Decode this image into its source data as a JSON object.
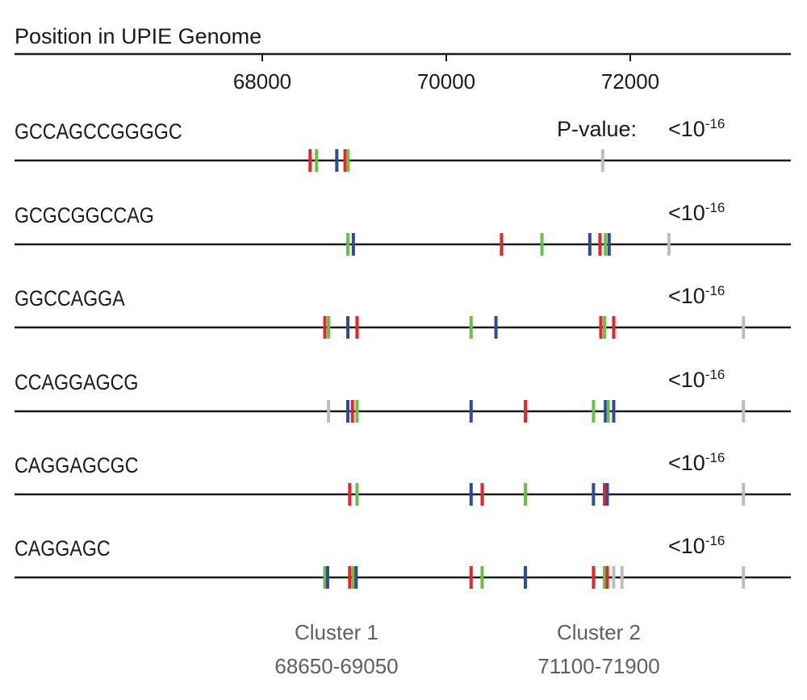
{
  "axis": {
    "title": "Position in UPIE Genome",
    "range": [
      65400,
      73900
    ],
    "ticks": [
      68000,
      70000,
      72000
    ],
    "tick_labels": [
      "68000",
      "70000",
      "72000"
    ]
  },
  "pvalue_label": "P-value:",
  "colors": {
    "red": "#e8242a",
    "green": "#6abf45",
    "blue": "#2e4a9e",
    "gray": "#bdbdbd",
    "line": "#1a1a1a",
    "cluster_text": "#5f5f5f"
  },
  "rows": [
    {
      "motif": "GCCAGCCGGGGC",
      "pvalue_prefix": "<10",
      "pvalue_exp": "-16",
      "marks": [
        [
          "red",
          68520
        ],
        [
          "green",
          68590
        ],
        [
          "blue",
          68810
        ],
        [
          "red",
          68900
        ],
        [
          "green",
          68930
        ],
        [
          "gray",
          71700
        ]
      ]
    },
    {
      "motif": "GCGCGGCCAG",
      "pvalue_prefix": "<10",
      "pvalue_exp": "-16",
      "marks": [
        [
          "green",
          68930
        ],
        [
          "blue",
          68990
        ],
        [
          "red",
          70600
        ],
        [
          "green",
          71040
        ],
        [
          "blue",
          71560
        ],
        [
          "red",
          71670
        ],
        [
          "green",
          71730
        ],
        [
          "blue",
          71770
        ],
        [
          "gray",
          72420
        ]
      ]
    },
    {
      "motif": "GGCCAGGA",
      "pvalue_prefix": "<10",
      "pvalue_exp": "-16",
      "marks": [
        [
          "red",
          68680
        ],
        [
          "green",
          68720
        ],
        [
          "blue",
          68930
        ],
        [
          "red",
          69030
        ],
        [
          "green",
          70270
        ],
        [
          "blue",
          70540
        ],
        [
          "red",
          71680
        ],
        [
          "green",
          71720
        ],
        [
          "red",
          71820
        ],
        [
          "gray",
          73230
        ]
      ]
    },
    {
      "motif": "CCAGGAGCG",
      "pvalue_prefix": "<10",
      "pvalue_exp": "-16",
      "marks": [
        [
          "gray",
          68720
        ],
        [
          "blue",
          68930
        ],
        [
          "red",
          68980
        ],
        [
          "green",
          69030
        ],
        [
          "blue",
          70270
        ],
        [
          "red",
          70860
        ],
        [
          "green",
          71600
        ],
        [
          "blue",
          71730
        ],
        [
          "green",
          71760
        ],
        [
          "blue",
          71820
        ],
        [
          "gray",
          73230
        ]
      ]
    },
    {
      "motif": "CAGGAGCGC",
      "pvalue_prefix": "<10",
      "pvalue_exp": "-16",
      "marks": [
        [
          "red",
          68950
        ],
        [
          "green",
          69030
        ],
        [
          "blue",
          70270
        ],
        [
          "red",
          70390
        ],
        [
          "green",
          70860
        ],
        [
          "blue",
          71600
        ],
        [
          "red",
          71720
        ],
        [
          "blue",
          71750
        ],
        [
          "gray",
          73230
        ]
      ]
    },
    {
      "motif": "CAGGAGC",
      "pvalue_prefix": "<10",
      "pvalue_exp": "-16",
      "marks": [
        [
          "green",
          68680
        ],
        [
          "blue",
          68710
        ],
        [
          "red",
          68950
        ],
        [
          "green",
          68990
        ],
        [
          "blue",
          69020
        ],
        [
          "red",
          70270
        ],
        [
          "green",
          70390
        ],
        [
          "blue",
          70860
        ],
        [
          "red",
          71600
        ],
        [
          "green",
          71720
        ],
        [
          "red",
          71750
        ],
        [
          "gray",
          71820
        ],
        [
          "gray",
          71910
        ],
        [
          "gray",
          73230
        ]
      ]
    }
  ],
  "clusters": [
    {
      "name": "Cluster 1",
      "range": "68650-69050"
    },
    {
      "name": "Cluster 2",
      "range": "71100-71900"
    }
  ]
}
